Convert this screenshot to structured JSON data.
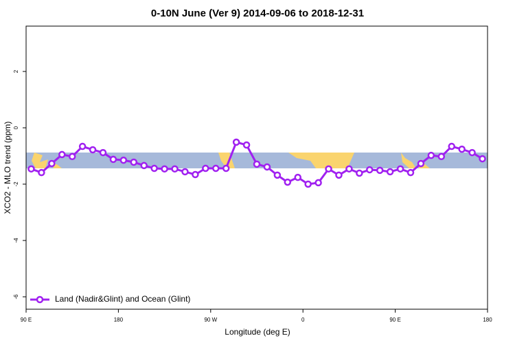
{
  "chart_data": {
    "type": "line",
    "title": "0-10N June (Ver 9)   2014-09-06 to 2018-12-31",
    "x_label": "Longitude (deg E)",
    "y_label": "XCO2 - MLO trend (ppm)",
    "x": [
      95,
      105,
      115,
      125,
      135,
      145,
      155,
      165,
      175,
      185,
      195,
      205,
      215,
      225,
      235,
      245,
      255,
      265,
      275,
      285,
      295,
      305,
      315,
      325,
      335,
      345,
      355,
      365,
      375,
      385,
      395,
      405,
      415,
      425,
      435,
      445,
      455,
      465,
      475,
      485,
      495,
      505,
      515,
      525,
      535
    ],
    "series": [
      {
        "name": "Land (Nadir&Glint) and Ocean (Glint)",
        "color": "#a020f0",
        "values": [
          -1.46,
          -1.59,
          -1.27,
          -0.95,
          -1.02,
          -0.66,
          -0.78,
          -0.88,
          -1.12,
          -1.15,
          -1.22,
          -1.34,
          -1.44,
          -1.46,
          -1.46,
          -1.56,
          -1.66,
          -1.44,
          -1.44,
          -1.44,
          -0.51,
          -0.61,
          -1.29,
          -1.39,
          -1.68,
          -1.93,
          -1.76,
          -2.0,
          -1.95,
          -1.46,
          -1.68,
          -1.46,
          -1.61,
          -1.49,
          -1.51,
          -1.56,
          -1.46,
          -1.59,
          -1.27,
          -0.98,
          -1.02,
          -0.66,
          -0.76,
          -0.88,
          -1.1
        ]
      }
    ],
    "xlim": [
      90,
      540
    ],
    "ylim": [
      -6.44,
      3.61
    ],
    "xticks": [
      {
        "value": 90,
        "label": "90 E"
      },
      180,
      {
        "value": 270,
        "label": "90 W"
      },
      {
        "value": 360,
        "label": "0"
      },
      {
        "value": 450,
        "label": "90 E"
      },
      {
        "value": 540,
        "label": "180"
      }
    ],
    "yticks": [
      -6,
      -4,
      -2,
      0,
      2
    ],
    "legend": "bottom-left"
  }
}
